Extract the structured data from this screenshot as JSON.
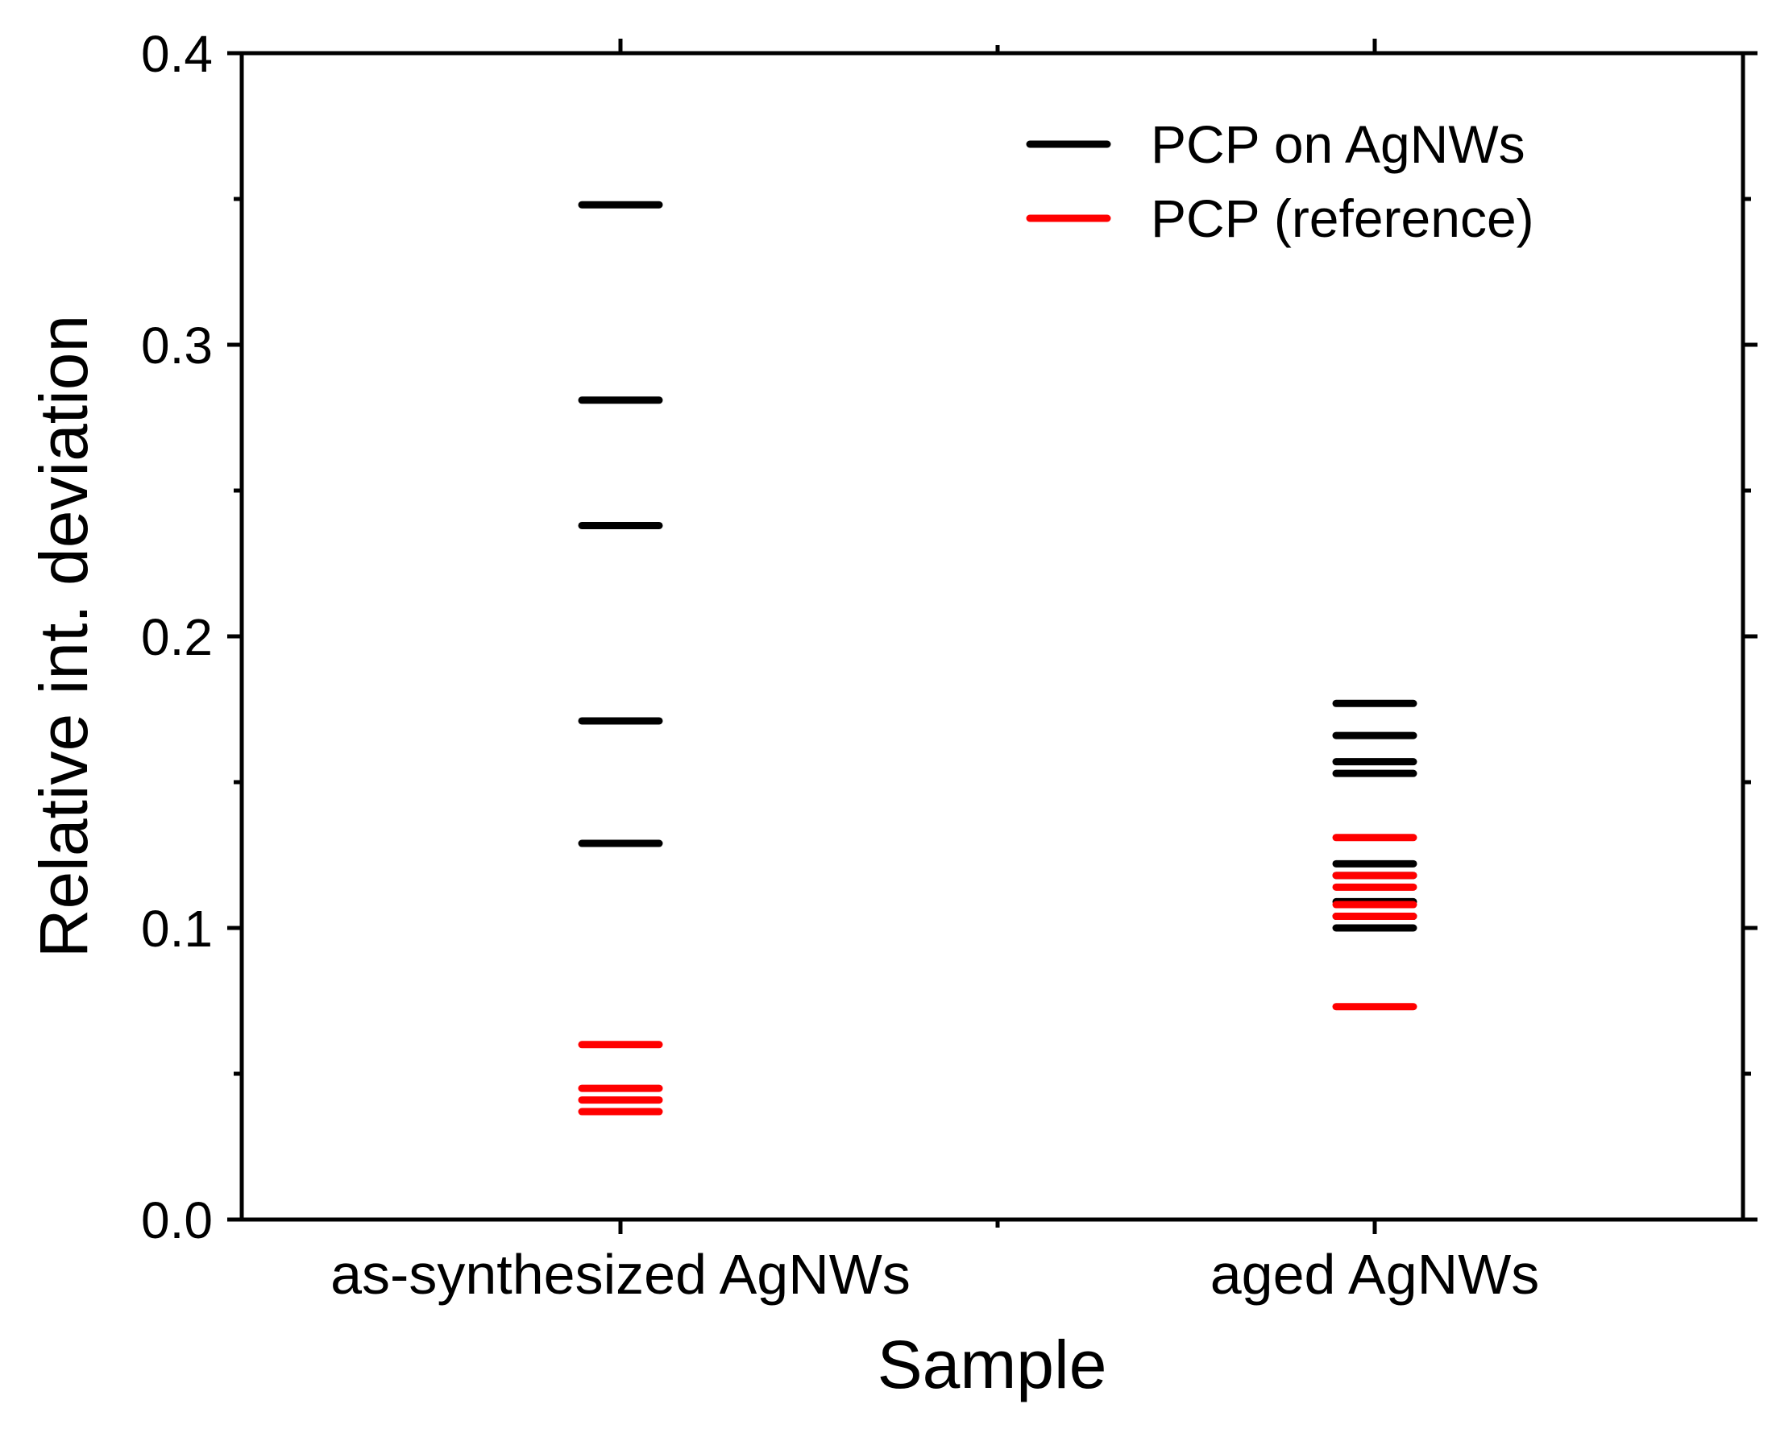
{
  "chart_data": {
    "type": "scatter",
    "title": "",
    "xlabel": "Sample",
    "ylabel": "Relative int. deviation",
    "categories": [
      "as-synthesized AgNWs",
      "aged AgNWs"
    ],
    "ylim": [
      0.0,
      0.4
    ],
    "yticks": [
      "0.0",
      "0.1",
      "0.2",
      "0.3",
      "0.4"
    ],
    "grid": false,
    "legend_position": "top-right",
    "marker": "horizontal-dash",
    "series": [
      {
        "name": "PCP on AgNWs",
        "color": "#000000",
        "values": [
          [
            0.348,
            0.281,
            0.238,
            0.171,
            0.129
          ],
          [
            0.177,
            0.166,
            0.157,
            0.153,
            0.122,
            0.118,
            0.109,
            0.104,
            0.1
          ]
        ]
      },
      {
        "name": "PCP (reference)",
        "color": "#ff0000",
        "values": [
          [
            0.06,
            0.045,
            0.041,
            0.037
          ],
          [
            0.131,
            0.118,
            0.114,
            0.108,
            0.104,
            0.073
          ]
        ]
      }
    ]
  }
}
